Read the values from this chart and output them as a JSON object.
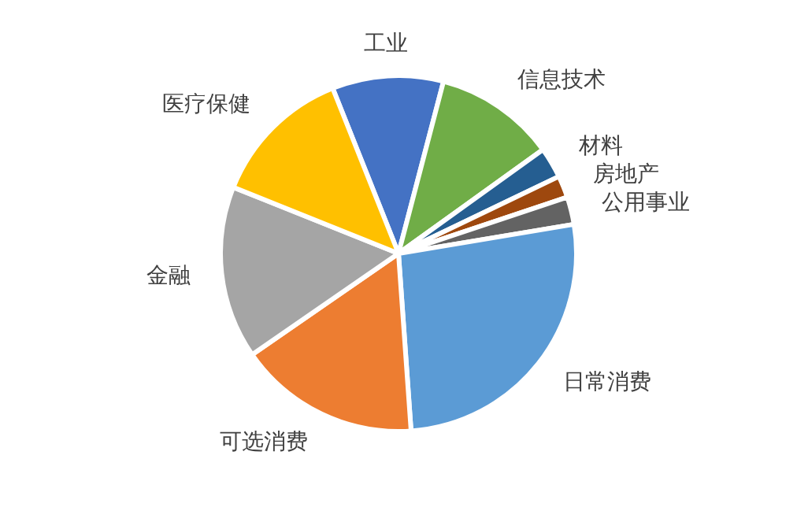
{
  "chart_data": {
    "type": "pie",
    "categories": [
      "工业",
      "信息技术",
      "材料",
      "房地产",
      "公用事业",
      "日常消费",
      "可选消费",
      "金融",
      "医疗保健"
    ],
    "values": [
      10.1,
      11.0,
      2.8,
      2.0,
      2.5,
      26.5,
      16.5,
      15.7,
      12.9
    ],
    "colors": [
      "#4472c4",
      "#70ad47",
      "#255e91",
      "#9e480e",
      "#636363",
      "#5b9bd5",
      "#ed7d31",
      "#a5a5a5",
      "#ffc000"
    ],
    "legend": false
  }
}
